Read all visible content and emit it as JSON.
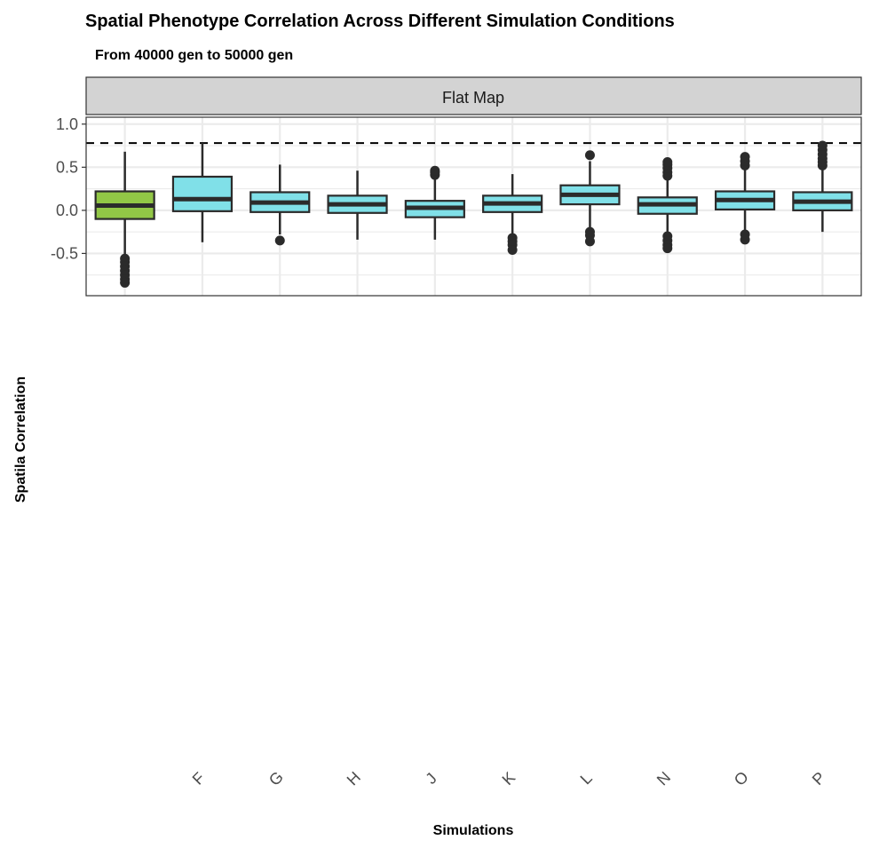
{
  "chart_data": {
    "type": "box",
    "title": "Spatial Phenotype Correlation Across Different Simulation Conditions",
    "subtitle": "From 40000 gen to 50000 gen",
    "facet_label": "Flat Map",
    "xlabel": "Simulations",
    "ylabel": "Spatila Correlation",
    "ylim": [
      -0.99,
      1.08
    ],
    "yticks": [
      1.0,
      0.5,
      0.0,
      -0.5
    ],
    "ytick_labels": [
      "1.0",
      "0.5",
      "0.0",
      "-0.5"
    ],
    "reference_line": 0.78,
    "grid": true,
    "colors": {
      "highlight": "#92c746",
      "default": "#80e0e8",
      "outline": "#2b2b2b"
    },
    "categories": [
      "",
      "F",
      "G",
      "H",
      "J",
      "K",
      "L",
      "N",
      "O",
      "P"
    ],
    "boxes": [
      {
        "name": "",
        "highlight": true,
        "whisker_low": -0.53,
        "q1": -0.1,
        "median": 0.055,
        "q3": 0.22,
        "whisker_high": 0.68,
        "outliers": [
          -0.56,
          -0.6,
          -0.65,
          -0.7,
          -0.75,
          -0.8,
          -0.84
        ]
      },
      {
        "name": "F",
        "whisker_low": -0.37,
        "q1": -0.01,
        "median": 0.13,
        "q3": 0.39,
        "whisker_high": 0.78,
        "outliers": []
      },
      {
        "name": "G",
        "whisker_low": -0.28,
        "q1": -0.02,
        "median": 0.09,
        "q3": 0.21,
        "whisker_high": 0.53,
        "outliers": [
          -0.35
        ]
      },
      {
        "name": "H",
        "whisker_low": -0.34,
        "q1": -0.03,
        "median": 0.07,
        "q3": 0.17,
        "whisker_high": 0.46,
        "outliers": []
      },
      {
        "name": "J",
        "whisker_low": -0.34,
        "q1": -0.08,
        "median": 0.03,
        "q3": 0.11,
        "whisker_high": 0.36,
        "outliers": [
          0.41,
          0.44,
          0.46
        ]
      },
      {
        "name": "K",
        "whisker_low": -0.27,
        "q1": -0.02,
        "median": 0.08,
        "q3": 0.17,
        "whisker_high": 0.42,
        "outliers": [
          -0.32,
          -0.36,
          -0.4,
          -0.46
        ]
      },
      {
        "name": "L",
        "whisker_low": -0.22,
        "q1": 0.07,
        "median": 0.18,
        "q3": 0.29,
        "whisker_high": 0.57,
        "outliers": [
          0.64,
          -0.25,
          -0.29,
          -0.36
        ]
      },
      {
        "name": "N",
        "whisker_low": -0.27,
        "q1": -0.04,
        "median": 0.07,
        "q3": 0.15,
        "whisker_high": 0.37,
        "outliers": [
          0.4,
          0.44,
          0.49,
          0.53,
          0.56,
          -0.3,
          -0.35,
          -0.4,
          -0.44
        ]
      },
      {
        "name": "O",
        "whisker_low": -0.25,
        "q1": 0.01,
        "median": 0.12,
        "q3": 0.22,
        "whisker_high": 0.48,
        "outliers": [
          0.52,
          0.57,
          0.62,
          -0.28,
          -0.34
        ]
      },
      {
        "name": "P",
        "whisker_low": -0.25,
        "q1": 0.0,
        "median": 0.1,
        "q3": 0.21,
        "whisker_high": 0.48,
        "outliers": [
          0.52,
          0.56,
          0.6,
          0.65,
          0.7,
          0.75
        ]
      }
    ]
  }
}
